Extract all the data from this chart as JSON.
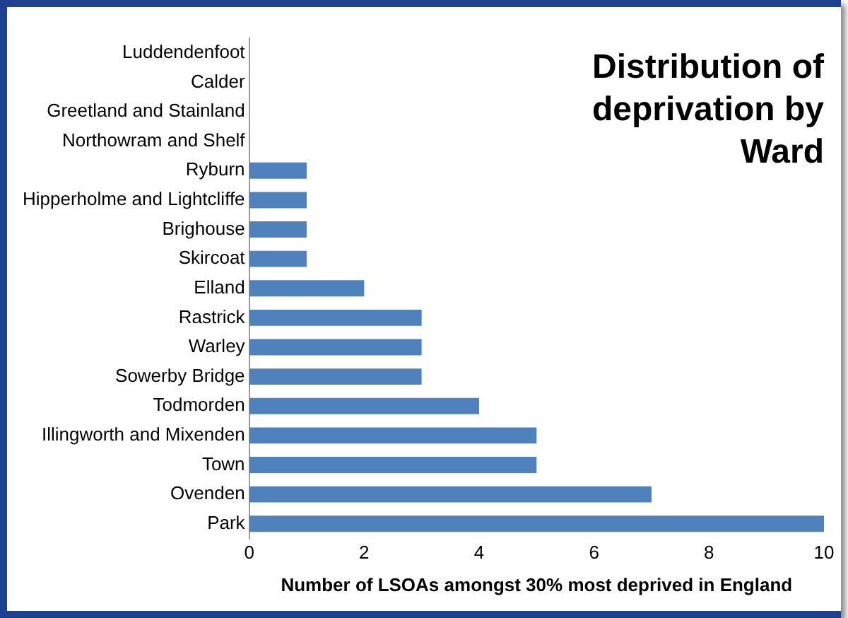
{
  "chart_data": {
    "type": "bar",
    "orientation": "horizontal",
    "title": "Distribution of deprivation by Ward",
    "xlabel": "Number of LSOAs amongst 30% most deprived in England",
    "categories": [
      "Luddendenfoot",
      "Calder",
      "Greetland and Stainland",
      "Northowram and Shelf",
      "Ryburn",
      "Hipperholme and Lightcliffe",
      "Brighouse",
      "Skircoat",
      "Elland",
      "Rastrick",
      "Warley",
      "Sowerby Bridge",
      "Todmorden",
      "Illingworth and Mixenden",
      "Town",
      "Ovenden",
      "Park"
    ],
    "values": [
      0,
      0,
      0,
      0,
      1,
      1,
      1,
      1,
      2,
      3,
      3,
      3,
      4,
      5,
      5,
      7,
      10
    ],
    "color": "#4f81bd",
    "xlim": [
      0,
      10
    ],
    "xticks": [
      0,
      2,
      4,
      6,
      8,
      10
    ],
    "grid": false,
    "legend": false
  }
}
